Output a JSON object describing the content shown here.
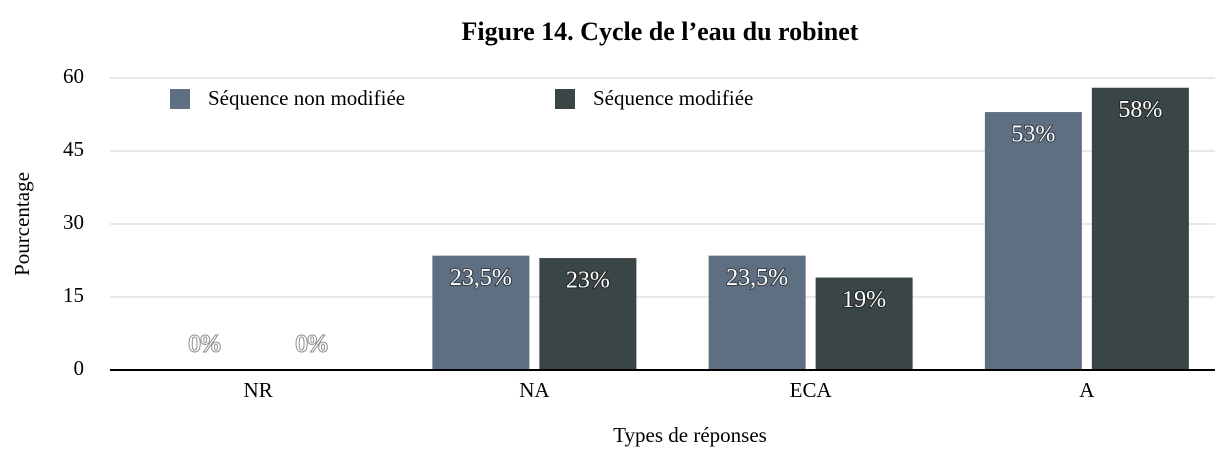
{
  "chart_data": {
    "type": "bar",
    "title": "Figure 14. Cycle de l’eau du robinet",
    "x_label": "Types de réponses",
    "y_label": "Pourcentage",
    "categories": [
      "NR",
      "NA",
      "ECA",
      "A"
    ],
    "series": [
      {
        "name": "Séquence non modifiée",
        "color": "#5f6f82",
        "values": [
          0,
          23.5,
          23.5,
          53
        ],
        "value_labels": [
          "0%",
          "23,5%",
          "23,5%",
          "53%"
        ]
      },
      {
        "name": "Séquence modifiée",
        "color": "#3a4545",
        "values": [
          0,
          23,
          19,
          58
        ],
        "value_labels": [
          "0%",
          "23%",
          "19%",
          "58%"
        ]
      }
    ],
    "ylim": [
      0,
      60
    ],
    "yticks": [
      0,
      15,
      30,
      45,
      60
    ],
    "grid": true,
    "legend": "top-left"
  }
}
